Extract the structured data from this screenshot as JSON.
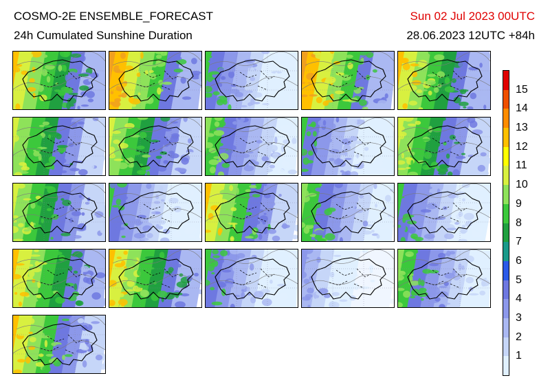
{
  "header": {
    "model_title": "COSMO-2E ENSEMBLE_FORECAST",
    "variable_title": "24h Cumulated Sunshine Duration",
    "valid_time": "Sun 02 Jul 2023 00UTC",
    "init_time": "28.06.2023 12UTC +84h"
  },
  "colorbar": {
    "labels": [
      "15",
      "14",
      "13",
      "12",
      "11",
      "10",
      "9",
      "8",
      "7",
      "6",
      "5",
      "4",
      "3",
      "2",
      "1"
    ],
    "colors": [
      "#e0f0ff",
      "#c6d6f8",
      "#aab8f2",
      "#8c98ea",
      "#6e78e0",
      "#2b5ae8",
      "#1a9a8a",
      "#20a040",
      "#3cc83c",
      "#8ee25a",
      "#d8f040",
      "#ffff00",
      "#ffc000",
      "#ff8c00",
      "#f05000",
      "#e00000"
    ]
  },
  "members": [
    {
      "id": "m01",
      "palette": "sunny-west"
    },
    {
      "id": "m02",
      "palette": "sunny"
    },
    {
      "id": "m03",
      "palette": "cloudy"
    },
    {
      "id": "m04",
      "palette": "sunny"
    },
    {
      "id": "m05",
      "palette": "sunny-west"
    },
    {
      "id": "m06",
      "palette": "mixed"
    },
    {
      "id": "m07",
      "palette": "mixed"
    },
    {
      "id": "m08",
      "palette": "mixed-cloudy"
    },
    {
      "id": "m09",
      "palette": "cloudy"
    },
    {
      "id": "m10",
      "palette": "mixed"
    },
    {
      "id": "m11",
      "palette": "mixed"
    },
    {
      "id": "m12",
      "palette": "cloudy"
    },
    {
      "id": "m13",
      "palette": "mixed-sunny"
    },
    {
      "id": "m14",
      "palette": "mixed-cloudy"
    },
    {
      "id": "m15",
      "palette": "cloudy"
    },
    {
      "id": "m16",
      "palette": "sunny-west"
    },
    {
      "id": "m17",
      "palette": "sunny-west"
    },
    {
      "id": "m18",
      "palette": "cloudy"
    },
    {
      "id": "m19",
      "palette": "very-cloudy"
    },
    {
      "id": "m20",
      "palette": "mixed-cloudy"
    },
    {
      "id": "m21",
      "palette": "mixed-sunny"
    }
  ]
}
